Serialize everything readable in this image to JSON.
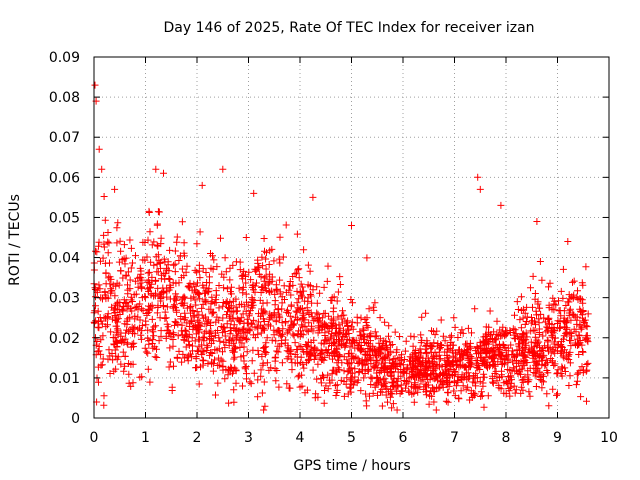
{
  "chart_data": {
    "type": "scatter",
    "title": "Day 146 of 2025, Rate Of TEC Index for receiver izan",
    "xlabel": "GPS time / hours",
    "ylabel": "ROTI / TECUs",
    "xlim": [
      0,
      10
    ],
    "ylim": [
      0,
      0.09
    ],
    "xticks": [
      "0",
      "1",
      "2",
      "3",
      "4",
      "5",
      "6",
      "7",
      "8",
      "9",
      "10"
    ],
    "yticks": [
      "0",
      "0.01",
      "0.02",
      "0.03",
      "0.04",
      "0.05",
      "0.06",
      "0.07",
      "0.08",
      "0.09"
    ],
    "grid": true,
    "marker": "plus",
    "color": "#ff0000",
    "x_range_of_data": [
      0,
      9.6
    ],
    "series": [
      {
        "name": "ROTI",
        "profile_baseline": [
          [
            0.0,
            0.026
          ],
          [
            0.2,
            0.03
          ],
          [
            0.5,
            0.024
          ],
          [
            1.0,
            0.028
          ],
          [
            1.3,
            0.033
          ],
          [
            1.6,
            0.028
          ],
          [
            2.0,
            0.025
          ],
          [
            2.5,
            0.022
          ],
          [
            3.0,
            0.025
          ],
          [
            3.5,
            0.026
          ],
          [
            4.0,
            0.024
          ],
          [
            4.5,
            0.02
          ],
          [
            5.0,
            0.017
          ],
          [
            5.5,
            0.014
          ],
          [
            6.0,
            0.011
          ],
          [
            6.5,
            0.013
          ],
          [
            7.0,
            0.012
          ],
          [
            7.5,
            0.014
          ],
          [
            8.0,
            0.015
          ],
          [
            8.5,
            0.018
          ],
          [
            9.0,
            0.02
          ],
          [
            9.6,
            0.022
          ]
        ],
        "notable_points": [
          [
            0.02,
            0.083
          ],
          [
            0.04,
            0.079
          ],
          [
            0.1,
            0.067
          ],
          [
            0.15,
            0.062
          ],
          [
            0.4,
            0.057
          ],
          [
            1.2,
            0.062
          ],
          [
            1.35,
            0.061
          ],
          [
            2.1,
            0.058
          ],
          [
            2.5,
            0.062
          ],
          [
            3.1,
            0.056
          ],
          [
            4.25,
            0.055
          ],
          [
            5.0,
            0.048
          ],
          [
            7.45,
            0.06
          ],
          [
            7.5,
            0.057
          ],
          [
            7.9,
            0.053
          ],
          [
            8.6,
            0.049
          ],
          [
            9.2,
            0.044
          ],
          [
            0.05,
            0.004
          ],
          [
            5.6,
            0.003
          ],
          [
            6.6,
            0.004
          ],
          [
            9.0,
            0.006
          ]
        ]
      }
    ]
  }
}
